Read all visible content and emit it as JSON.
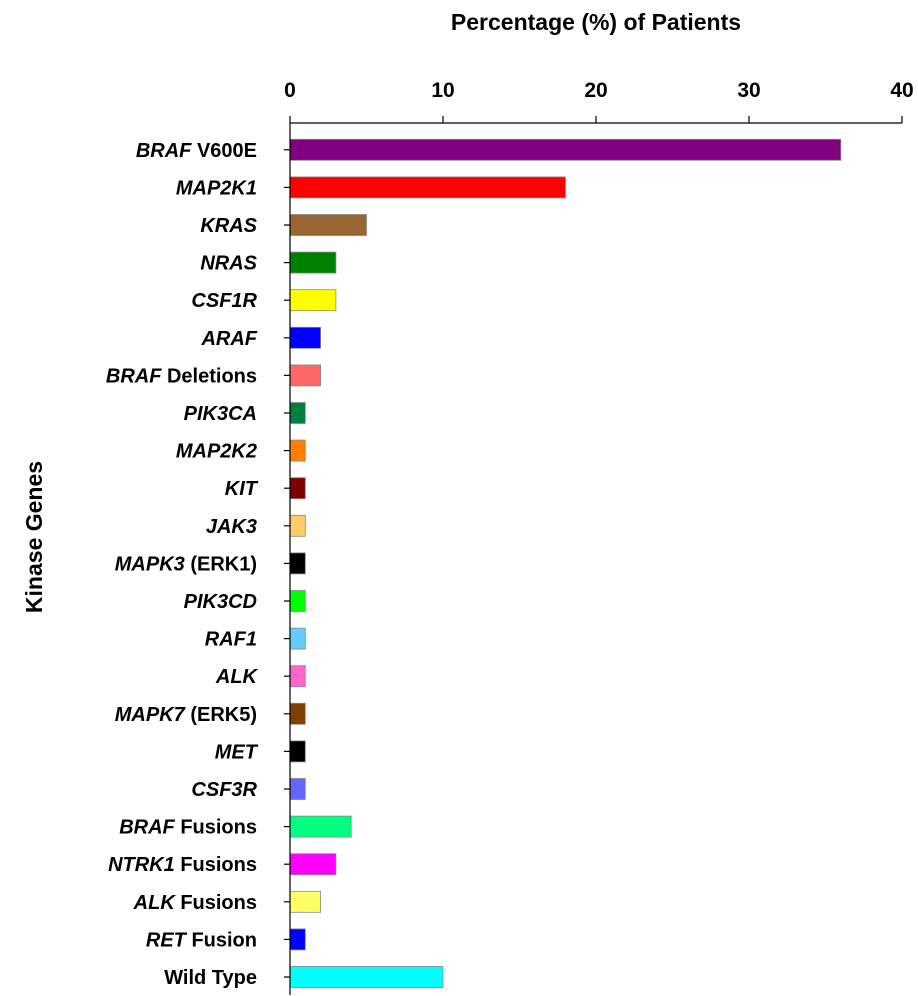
{
  "chart_data": {
    "type": "bar",
    "orientation": "horizontal",
    "xlabel": "Percentage (%) of Patients",
    "ylabel": "Kinase Genes",
    "xlim": [
      0,
      40
    ],
    "xticks": [
      "0",
      "10",
      "20",
      "30",
      "40"
    ],
    "xaxis_position": "top",
    "grid": false,
    "legend": "none",
    "categories": [
      {
        "italic": "BRAF",
        "plain": " V600E",
        "value": 36,
        "color": "#800080"
      },
      {
        "italic": "MAP2K1",
        "plain": "",
        "value": 18,
        "color": "#ff0000"
      },
      {
        "italic": "KRAS",
        "plain": "",
        "value": 5,
        "color": "#996633"
      },
      {
        "italic": "NRAS",
        "plain": "",
        "value": 3,
        "color": "#008000"
      },
      {
        "italic": "CSF1R",
        "plain": "",
        "value": 3,
        "color": "#ffff00"
      },
      {
        "italic": "ARAF",
        "plain": "",
        "value": 2,
        "color": "#0000ff"
      },
      {
        "italic": "BRAF",
        "plain": " Deletions",
        "value": 2,
        "color": "#ff6666"
      },
      {
        "italic": "PIK3CA",
        "plain": "",
        "value": 1,
        "color": "#008040"
      },
      {
        "italic": "MAP2K2",
        "plain": "",
        "value": 1,
        "color": "#ff8000"
      },
      {
        "italic": "KIT",
        "plain": "",
        "value": 1,
        "color": "#800000"
      },
      {
        "italic": "JAK3",
        "plain": "",
        "value": 1,
        "color": "#ffcc66"
      },
      {
        "italic": "MAPK3",
        "plain": " (ERK1)",
        "value": 1,
        "color": "#000000"
      },
      {
        "italic": "PIK3CD",
        "plain": "",
        "value": 1,
        "color": "#00ff00"
      },
      {
        "italic": "RAF1",
        "plain": "",
        "value": 1,
        "color": "#66ccff"
      },
      {
        "italic": "ALK",
        "plain": "",
        "value": 1,
        "color": "#ff66cc"
      },
      {
        "italic": "MAPK7",
        "plain": " (ERK5)",
        "value": 1,
        "color": "#804000"
      },
      {
        "italic": "MET",
        "plain": "",
        "value": 1,
        "color": "#000000"
      },
      {
        "italic": "CSF3R",
        "plain": "",
        "value": 1,
        "color": "#6666ff"
      },
      {
        "italic": "BRAF",
        "plain": " Fusions",
        "value": 4,
        "color": "#00ff80"
      },
      {
        "italic": "NTRK1",
        "plain": " Fusions",
        "value": 3,
        "color": "#ff00ff"
      },
      {
        "italic": "ALK",
        "plain": " Fusions",
        "value": 2,
        "color": "#ffff66"
      },
      {
        "italic": "RET",
        "plain": " Fusion",
        "value": 1,
        "color": "#0000ff"
      },
      {
        "italic": "",
        "plain": "Wild Type",
        "value": 10,
        "color": "#00ffff"
      }
    ]
  }
}
